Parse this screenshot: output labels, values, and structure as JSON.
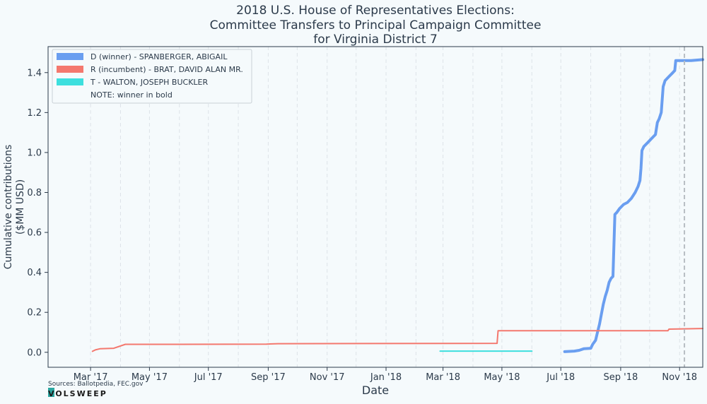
{
  "chart_data": {
    "type": "line",
    "title_lines": [
      "2018 U.S. House of Representatives Elections:",
      "Committee Transfers to Principal Campaign Committee",
      "for Virginia District 7"
    ],
    "xlabel": "Date",
    "ylabel_lines": [
      "Cumulative contributions",
      "($MM USD)"
    ],
    "xlim": [
      "2017-01-16",
      "2018-11-25"
    ],
    "ylim": [
      -0.075,
      1.53
    ],
    "x_ticks": [
      {
        "date": "2017-03-01",
        "label": "Mar '17"
      },
      {
        "date": "2017-05-01",
        "label": "May '17"
      },
      {
        "date": "2017-07-01",
        "label": "Jul '17"
      },
      {
        "date": "2017-09-01",
        "label": "Sep '17"
      },
      {
        "date": "2017-11-01",
        "label": "Nov '17"
      },
      {
        "date": "2018-01-01",
        "label": "Jan '18"
      },
      {
        "date": "2018-03-01",
        "label": "Mar '18"
      },
      {
        "date": "2018-05-01",
        "label": "May '18"
      },
      {
        "date": "2018-07-01",
        "label": "Jul '18"
      },
      {
        "date": "2018-09-01",
        "label": "Sep '18"
      },
      {
        "date": "2018-11-01",
        "label": "Nov '18"
      }
    ],
    "minor_grid_dates": [
      "2017-04-01",
      "2017-06-01",
      "2017-08-01",
      "2017-10-01",
      "2017-12-01",
      "2018-02-01",
      "2018-04-01",
      "2018-06-01",
      "2018-08-01",
      "2018-10-01"
    ],
    "y_ticks": [
      0.0,
      0.2,
      0.4,
      0.6,
      0.8,
      1.0,
      1.2,
      1.4
    ],
    "y_tick_labels": [
      "0.0",
      "0.2",
      "0.4",
      "0.6",
      "0.8",
      "1.0",
      "1.2",
      "1.4"
    ],
    "election_date": "2018-11-06",
    "legend_position": "top-left",
    "legend_note": "NOTE: winner in bold",
    "grid": "vertical dashed",
    "series": [
      {
        "name": "D (winner) - SPANBERGER, ABIGAIL",
        "color": "#6a9ef0",
        "bold": true,
        "points": [
          [
            "2018-07-05",
            0.003
          ],
          [
            "2018-07-15",
            0.006
          ],
          [
            "2018-07-20",
            0.01
          ],
          [
            "2018-07-25",
            0.018
          ],
          [
            "2018-08-01",
            0.02
          ],
          [
            "2018-08-03",
            0.04
          ],
          [
            "2018-08-06",
            0.06
          ],
          [
            "2018-08-08",
            0.1
          ],
          [
            "2018-08-10",
            0.14
          ],
          [
            "2018-08-12",
            0.19
          ],
          [
            "2018-08-14",
            0.24
          ],
          [
            "2018-08-16",
            0.28
          ],
          [
            "2018-08-18",
            0.31
          ],
          [
            "2018-08-20",
            0.35
          ],
          [
            "2018-08-22",
            0.37
          ],
          [
            "2018-08-24",
            0.38
          ],
          [
            "2018-08-26",
            0.69
          ],
          [
            "2018-08-28",
            0.7
          ],
          [
            "2018-08-31",
            0.72
          ],
          [
            "2018-09-04",
            0.74
          ],
          [
            "2018-09-08",
            0.75
          ],
          [
            "2018-09-12",
            0.77
          ],
          [
            "2018-09-16",
            0.8
          ],
          [
            "2018-09-19",
            0.83
          ],
          [
            "2018-09-21",
            0.86
          ],
          [
            "2018-09-22",
            0.92
          ],
          [
            "2018-09-23",
            1.01
          ],
          [
            "2018-09-25",
            1.03
          ],
          [
            "2018-09-29",
            1.05
          ],
          [
            "2018-10-03",
            1.07
          ],
          [
            "2018-10-07",
            1.09
          ],
          [
            "2018-10-09",
            1.15
          ],
          [
            "2018-10-11",
            1.17
          ],
          [
            "2018-10-13",
            1.2
          ],
          [
            "2018-10-15",
            1.33
          ],
          [
            "2018-10-17",
            1.36
          ],
          [
            "2018-10-21",
            1.38
          ],
          [
            "2018-10-25",
            1.4
          ],
          [
            "2018-10-27",
            1.41
          ],
          [
            "2018-10-28",
            1.46
          ],
          [
            "2018-11-03",
            1.46
          ],
          [
            "2018-11-13",
            1.46
          ],
          [
            "2018-11-25",
            1.465
          ]
        ]
      },
      {
        "name": "R (incumbent) - BRAT, DAVID ALAN MR.",
        "color": "#f4786e",
        "bold": false,
        "points": [
          [
            "2017-03-03",
            0.005
          ],
          [
            "2017-03-06",
            0.012
          ],
          [
            "2017-03-11",
            0.018
          ],
          [
            "2017-03-25",
            0.02
          ],
          [
            "2017-04-06",
            0.04
          ],
          [
            "2017-06-01",
            0.04
          ],
          [
            "2017-08-30",
            0.041
          ],
          [
            "2017-09-11",
            0.043
          ],
          [
            "2018-04-26",
            0.045
          ],
          [
            "2018-04-27",
            0.108
          ],
          [
            "2018-10-20",
            0.108
          ],
          [
            "2018-10-21",
            0.116
          ],
          [
            "2018-11-25",
            0.119
          ]
        ]
      },
      {
        "name": "T - WALTON, JOSEPH BUCKLER",
        "color": "#3ddfde",
        "bold": false,
        "points": [
          [
            "2018-02-26",
            0.006
          ],
          [
            "2018-06-01",
            0.006
          ]
        ]
      }
    ]
  },
  "footer": {
    "sources": "Sources: Ballotpedia, FEC.gov",
    "brand": "VOLSWEEP"
  }
}
